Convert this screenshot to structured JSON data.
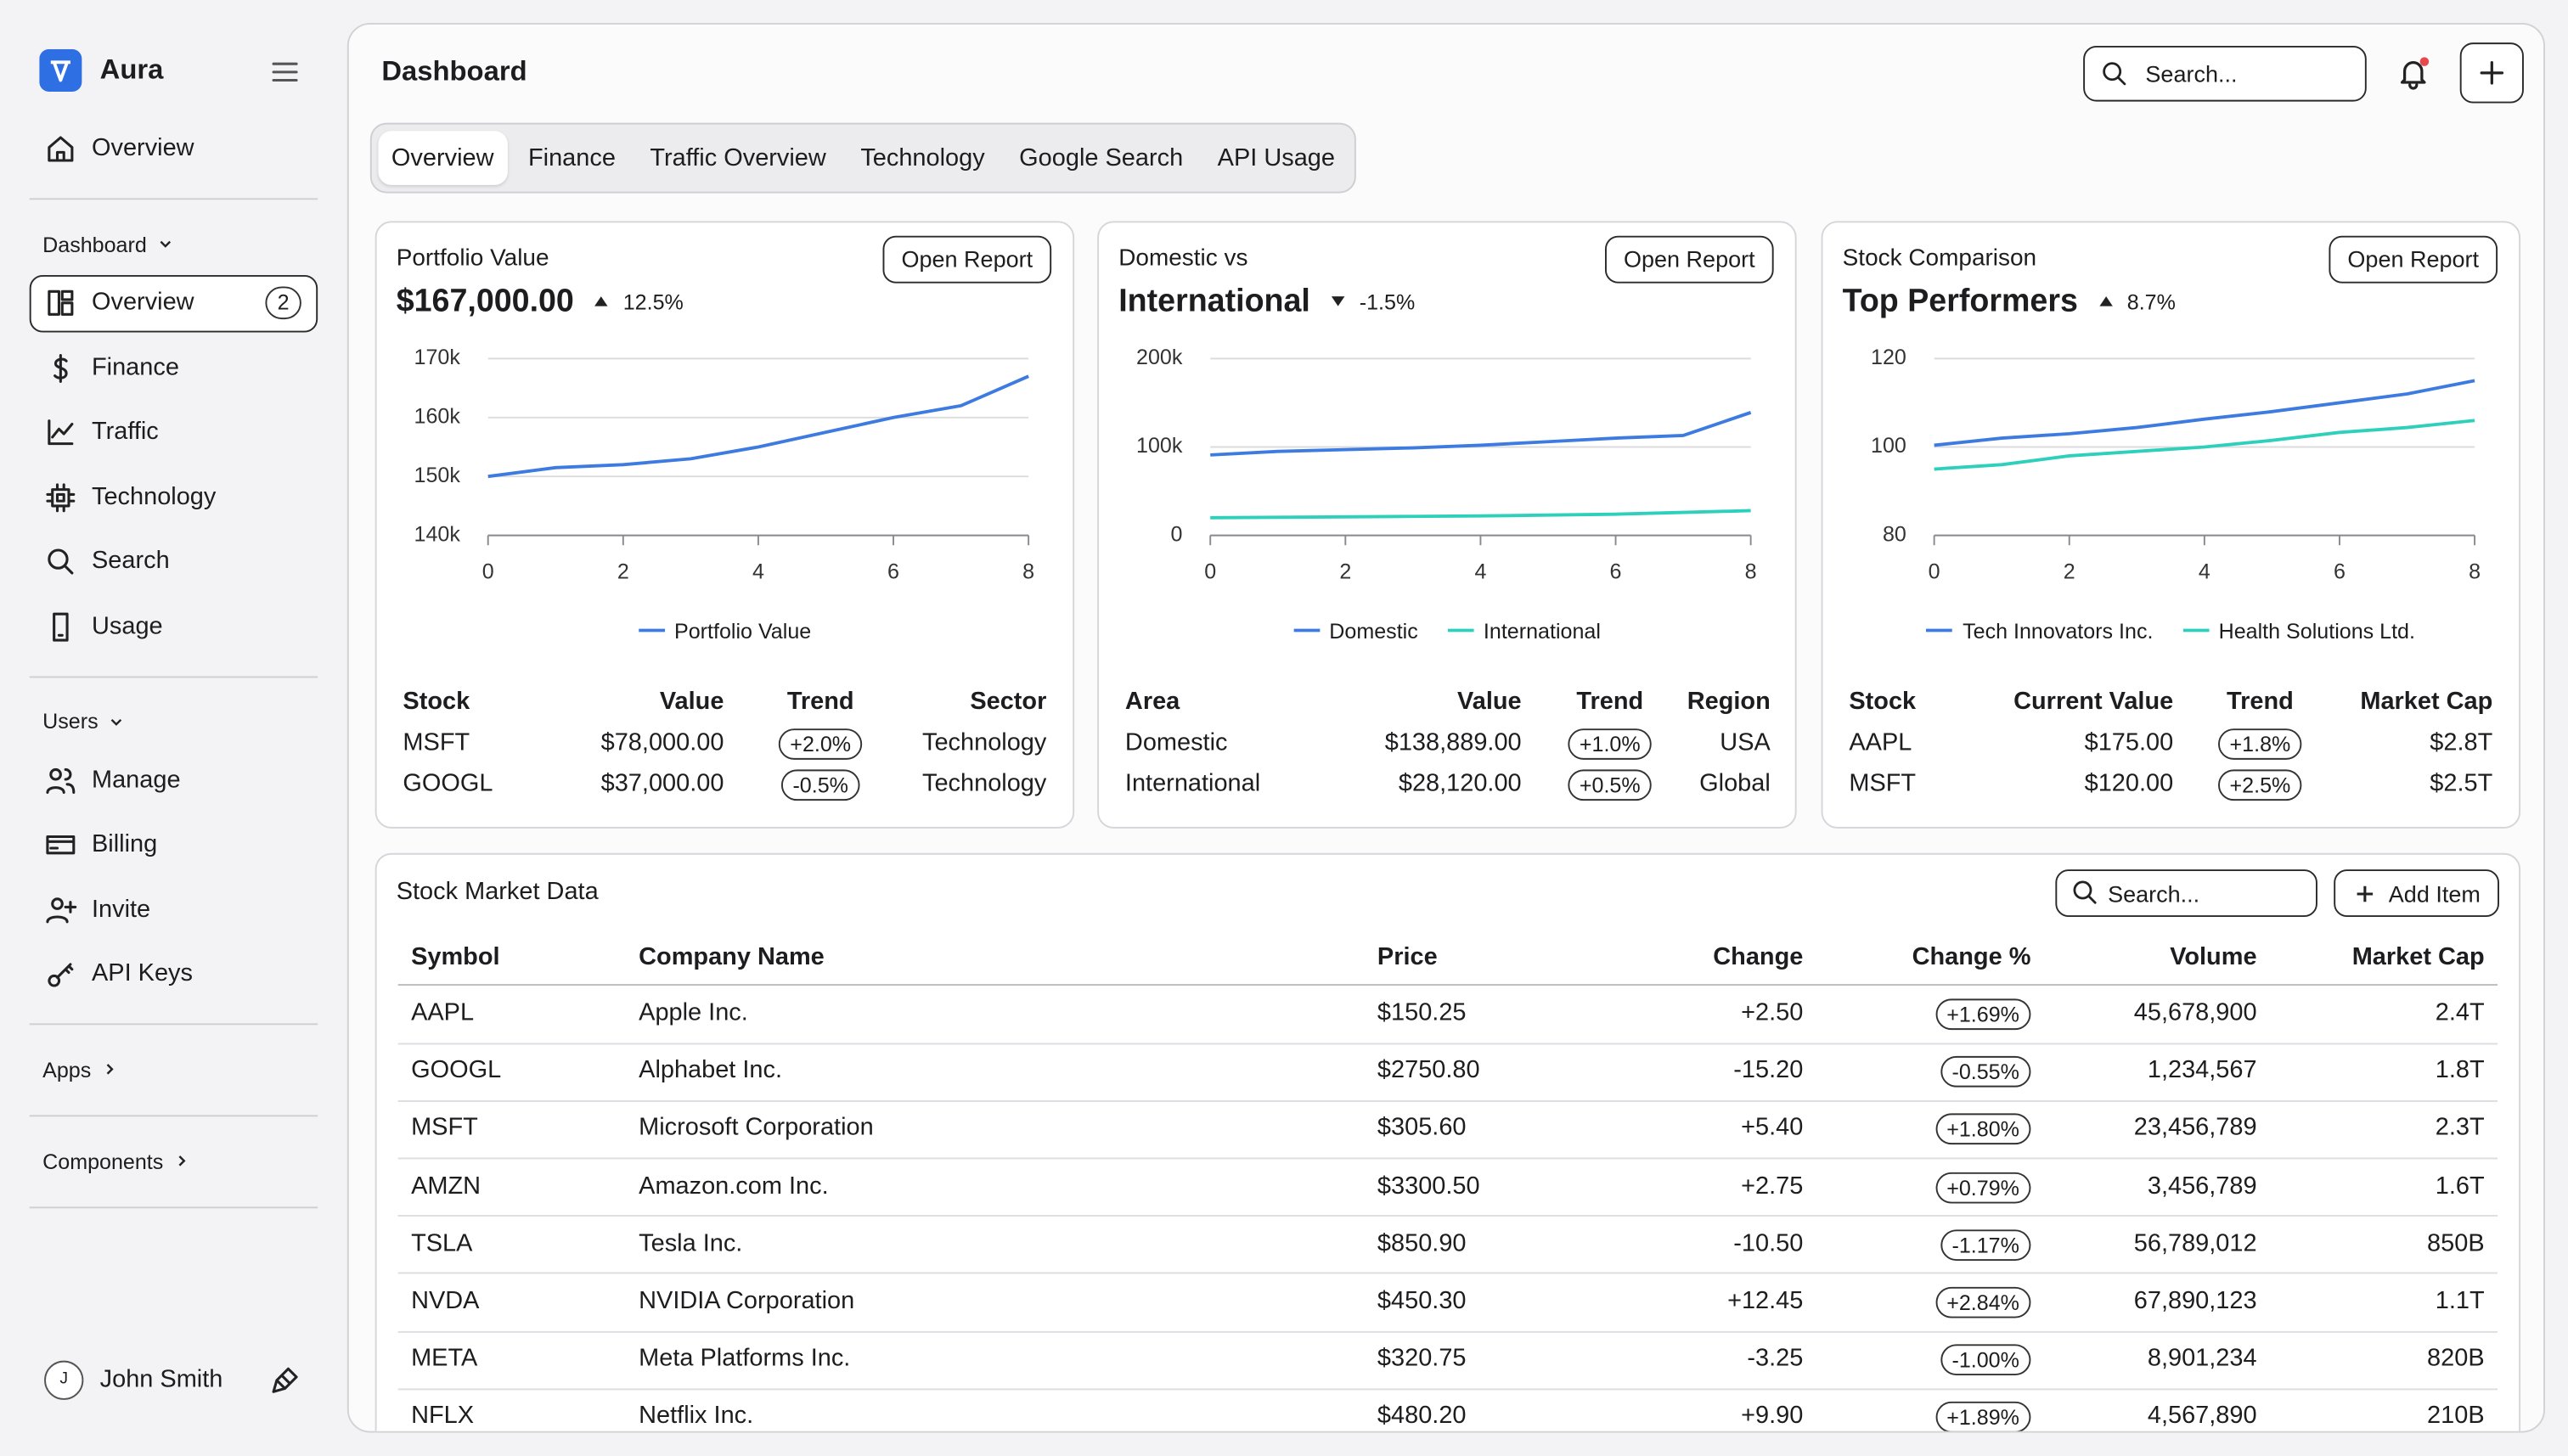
{
  "sidebar": {
    "brand": "Aura",
    "top_item": "Overview",
    "sections": [
      {
        "label": "Dashboard",
        "expanded": true,
        "items": [
          {
            "label": "Overview",
            "badge": "2",
            "active": true
          },
          {
            "label": "Finance"
          },
          {
            "label": "Traffic"
          },
          {
            "label": "Technology"
          },
          {
            "label": "Search"
          },
          {
            "label": "Usage"
          }
        ]
      },
      {
        "label": "Users",
        "expanded": true,
        "items": [
          {
            "label": "Manage"
          },
          {
            "label": "Billing"
          },
          {
            "label": "Invite"
          },
          {
            "label": "API Keys"
          }
        ]
      },
      {
        "label": "Apps",
        "expanded": false
      },
      {
        "label": "Components",
        "expanded": false
      }
    ],
    "user": {
      "initial": "J",
      "name": "John Smith"
    }
  },
  "header": {
    "title": "Dashboard",
    "search_placeholder": "Search..."
  },
  "tabs": {
    "items": [
      "Overview",
      "Finance",
      "Traffic Overview",
      "Technology",
      "Google Search",
      "API Usage"
    ],
    "active": 0
  },
  "cards": [
    {
      "title": "Portfolio Value",
      "headline": "$167,000.00",
      "change": "12.5%",
      "direction": "up",
      "button": "Open Report",
      "chart": {
        "type": "line",
        "x": [
          0,
          1,
          2,
          3,
          4,
          5,
          6,
          7,
          8
        ],
        "xlim": [
          0,
          8
        ],
        "xticks": [
          0,
          2,
          4,
          6,
          8
        ],
        "ylim": [
          140000,
          170000
        ],
        "yticks": [
          {
            "value": 140000,
            "label": "140k"
          },
          {
            "value": 150000,
            "label": "150k"
          },
          {
            "value": 160000,
            "label": "160k"
          },
          {
            "value": 170000,
            "label": "170k"
          }
        ],
        "grid": true,
        "legend": "bottom",
        "series": [
          {
            "name": "Portfolio Value",
            "color": "#3d7be0",
            "values": [
              150000,
              151500,
              152000,
              153000,
              155000,
              157500,
              160000,
              162000,
              167000
            ]
          }
        ]
      },
      "table": {
        "columns": [
          "Stock",
          "Value",
          "Trend",
          "Sector"
        ],
        "rows": [
          [
            "MSFT",
            "$78,000.00",
            "+2.0%",
            "Technology"
          ],
          [
            "GOOGL",
            "$37,000.00",
            "-0.5%",
            "Technology"
          ]
        ]
      }
    },
    {
      "title": "Domestic vs",
      "headline": "International",
      "change": "-1.5%",
      "direction": "down",
      "button": "Open Report",
      "chart": {
        "type": "line",
        "x": [
          0,
          1,
          2,
          3,
          4,
          5,
          6,
          7,
          8
        ],
        "xlim": [
          0,
          8
        ],
        "xticks": [
          0,
          2,
          4,
          6,
          8
        ],
        "ylim": [
          0,
          200000
        ],
        "yticks": [
          0,
          {
            "value": 100000,
            "label": "100k"
          },
          {
            "value": 200000,
            "label": "200k"
          }
        ],
        "grid": true,
        "legend": "bottom",
        "series": [
          {
            "name": "Domestic",
            "color": "#3d7be0",
            "values": [
              91000,
              95000,
              97000,
              99000,
              102000,
              106000,
              110000,
              113000,
              139000
            ]
          },
          {
            "name": "International",
            "color": "#2fd0bb",
            "values": [
              20000,
              20500,
              21000,
              21500,
              22000,
              23000,
              24000,
              26000,
              28000
            ]
          }
        ]
      },
      "table": {
        "columns": [
          "Area",
          "Value",
          "Trend",
          "Region"
        ],
        "rows": [
          [
            "Domestic",
            "$138,889.00",
            "+1.0%",
            "USA"
          ],
          [
            "International",
            "$28,120.00",
            "+0.5%",
            "Global"
          ]
        ]
      }
    },
    {
      "title": "Stock Comparison",
      "headline": "Top Performers",
      "change": "8.7%",
      "direction": "up",
      "button": "Open Report",
      "chart": {
        "type": "line",
        "x": [
          0,
          1,
          2,
          3,
          4,
          5,
          6,
          7,
          8
        ],
        "xlim": [
          0,
          8
        ],
        "xticks": [
          0,
          2,
          4,
          6,
          8
        ],
        "ylim": [
          80,
          120
        ],
        "yticks": [
          80,
          100,
          120
        ],
        "grid": true,
        "legend": "bottom",
        "series": [
          {
            "name": "Tech Innovators Inc.",
            "color": "#3d7be0",
            "values": [
              100.4,
              102,
              103,
              104.4,
              106.3,
              108,
              110,
              112,
              115
            ]
          },
          {
            "name": "Health Solutions Ltd.",
            "color": "#2fd0bb",
            "values": [
              95,
              96,
              98,
              99,
              100,
              101.5,
              103.3,
              104.4,
              106
            ]
          }
        ]
      },
      "table": {
        "columns": [
          "Stock",
          "Current Value",
          "Trend",
          "Market Cap"
        ],
        "rows": [
          [
            "AAPL",
            "$175.00",
            "+1.8%",
            "$2.8T"
          ],
          [
            "MSFT",
            "$120.00",
            "+2.5%",
            "$2.5T"
          ]
        ]
      }
    }
  ],
  "stock_table": {
    "title": "Stock Market Data",
    "search_placeholder": "Search...",
    "button": "Add Item",
    "columns": [
      "Symbol",
      "Company Name",
      "Price",
      "Change",
      "Change %",
      "Volume",
      "Market Cap"
    ],
    "rows": [
      [
        "AAPL",
        "Apple Inc.",
        "$150.25",
        "+2.50",
        "+1.69%",
        "45,678,900",
        "2.4T"
      ],
      [
        "GOOGL",
        "Alphabet Inc.",
        "$2750.80",
        "-15.20",
        "-0.55%",
        "1,234,567",
        "1.8T"
      ],
      [
        "MSFT",
        "Microsoft Corporation",
        "$305.60",
        "+5.40",
        "+1.80%",
        "23,456,789",
        "2.3T"
      ],
      [
        "AMZN",
        "Amazon.com Inc.",
        "$3300.50",
        "+2.75",
        "+0.79%",
        "3,456,789",
        "1.6T"
      ],
      [
        "TSLA",
        "Tesla Inc.",
        "$850.90",
        "-10.50",
        "-1.17%",
        "56,789,012",
        "850B"
      ],
      [
        "NVDA",
        "NVIDIA Corporation",
        "$450.30",
        "+12.45",
        "+2.84%",
        "67,890,123",
        "1.1T"
      ],
      [
        "META",
        "Meta Platforms Inc.",
        "$320.75",
        "-3.25",
        "-1.00%",
        "8,901,234",
        "820B"
      ],
      [
        "NFLX",
        "Netflix Inc.",
        "$480.20",
        "+9.90",
        "+1.89%",
        "4,567,890",
        "210B"
      ]
    ]
  }
}
